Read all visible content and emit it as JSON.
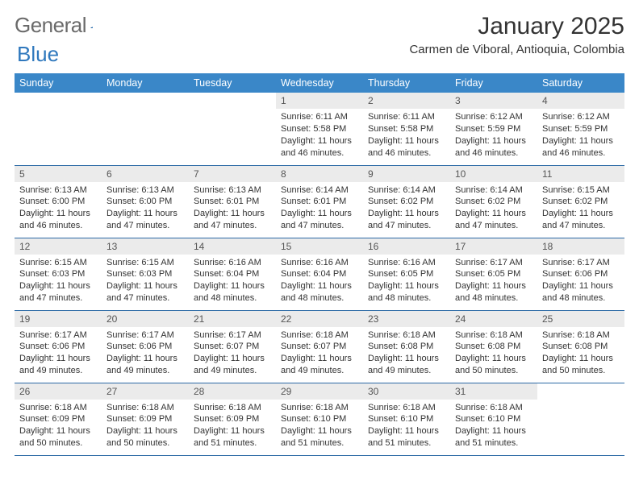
{
  "logo": {
    "word1": "General",
    "word2": "Blue"
  },
  "title": "January 2025",
  "location": "Carmen de Viboral, Antioquia, Colombia",
  "colors": {
    "header_bg": "#3a87c8",
    "header_text": "#ffffff",
    "row_border": "#2c6aa5",
    "daynum_bg": "#ebebeb",
    "logo_gray": "#6a6a6a",
    "logo_blue": "#2f78bd"
  },
  "font": {
    "daynum_size": 12,
    "body_size": 11,
    "th_size": 12.5,
    "title_size": 30,
    "location_size": 15
  },
  "weekdays": [
    "Sunday",
    "Monday",
    "Tuesday",
    "Wednesday",
    "Thursday",
    "Friday",
    "Saturday"
  ],
  "weeks": [
    [
      null,
      null,
      null,
      {
        "n": "1",
        "sr": "Sunrise: 6:11 AM",
        "ss": "Sunset: 5:58 PM",
        "dl1": "Daylight: 11 hours",
        "dl2": "and 46 minutes."
      },
      {
        "n": "2",
        "sr": "Sunrise: 6:11 AM",
        "ss": "Sunset: 5:58 PM",
        "dl1": "Daylight: 11 hours",
        "dl2": "and 46 minutes."
      },
      {
        "n": "3",
        "sr": "Sunrise: 6:12 AM",
        "ss": "Sunset: 5:59 PM",
        "dl1": "Daylight: 11 hours",
        "dl2": "and 46 minutes."
      },
      {
        "n": "4",
        "sr": "Sunrise: 6:12 AM",
        "ss": "Sunset: 5:59 PM",
        "dl1": "Daylight: 11 hours",
        "dl2": "and 46 minutes."
      }
    ],
    [
      {
        "n": "5",
        "sr": "Sunrise: 6:13 AM",
        "ss": "Sunset: 6:00 PM",
        "dl1": "Daylight: 11 hours",
        "dl2": "and 46 minutes."
      },
      {
        "n": "6",
        "sr": "Sunrise: 6:13 AM",
        "ss": "Sunset: 6:00 PM",
        "dl1": "Daylight: 11 hours",
        "dl2": "and 47 minutes."
      },
      {
        "n": "7",
        "sr": "Sunrise: 6:13 AM",
        "ss": "Sunset: 6:01 PM",
        "dl1": "Daylight: 11 hours",
        "dl2": "and 47 minutes."
      },
      {
        "n": "8",
        "sr": "Sunrise: 6:14 AM",
        "ss": "Sunset: 6:01 PM",
        "dl1": "Daylight: 11 hours",
        "dl2": "and 47 minutes."
      },
      {
        "n": "9",
        "sr": "Sunrise: 6:14 AM",
        "ss": "Sunset: 6:02 PM",
        "dl1": "Daylight: 11 hours",
        "dl2": "and 47 minutes."
      },
      {
        "n": "10",
        "sr": "Sunrise: 6:14 AM",
        "ss": "Sunset: 6:02 PM",
        "dl1": "Daylight: 11 hours",
        "dl2": "and 47 minutes."
      },
      {
        "n": "11",
        "sr": "Sunrise: 6:15 AM",
        "ss": "Sunset: 6:02 PM",
        "dl1": "Daylight: 11 hours",
        "dl2": "and 47 minutes."
      }
    ],
    [
      {
        "n": "12",
        "sr": "Sunrise: 6:15 AM",
        "ss": "Sunset: 6:03 PM",
        "dl1": "Daylight: 11 hours",
        "dl2": "and 47 minutes."
      },
      {
        "n": "13",
        "sr": "Sunrise: 6:15 AM",
        "ss": "Sunset: 6:03 PM",
        "dl1": "Daylight: 11 hours",
        "dl2": "and 47 minutes."
      },
      {
        "n": "14",
        "sr": "Sunrise: 6:16 AM",
        "ss": "Sunset: 6:04 PM",
        "dl1": "Daylight: 11 hours",
        "dl2": "and 48 minutes."
      },
      {
        "n": "15",
        "sr": "Sunrise: 6:16 AM",
        "ss": "Sunset: 6:04 PM",
        "dl1": "Daylight: 11 hours",
        "dl2": "and 48 minutes."
      },
      {
        "n": "16",
        "sr": "Sunrise: 6:16 AM",
        "ss": "Sunset: 6:05 PM",
        "dl1": "Daylight: 11 hours",
        "dl2": "and 48 minutes."
      },
      {
        "n": "17",
        "sr": "Sunrise: 6:17 AM",
        "ss": "Sunset: 6:05 PM",
        "dl1": "Daylight: 11 hours",
        "dl2": "and 48 minutes."
      },
      {
        "n": "18",
        "sr": "Sunrise: 6:17 AM",
        "ss": "Sunset: 6:06 PM",
        "dl1": "Daylight: 11 hours",
        "dl2": "and 48 minutes."
      }
    ],
    [
      {
        "n": "19",
        "sr": "Sunrise: 6:17 AM",
        "ss": "Sunset: 6:06 PM",
        "dl1": "Daylight: 11 hours",
        "dl2": "and 49 minutes."
      },
      {
        "n": "20",
        "sr": "Sunrise: 6:17 AM",
        "ss": "Sunset: 6:06 PM",
        "dl1": "Daylight: 11 hours",
        "dl2": "and 49 minutes."
      },
      {
        "n": "21",
        "sr": "Sunrise: 6:17 AM",
        "ss": "Sunset: 6:07 PM",
        "dl1": "Daylight: 11 hours",
        "dl2": "and 49 minutes."
      },
      {
        "n": "22",
        "sr": "Sunrise: 6:18 AM",
        "ss": "Sunset: 6:07 PM",
        "dl1": "Daylight: 11 hours",
        "dl2": "and 49 minutes."
      },
      {
        "n": "23",
        "sr": "Sunrise: 6:18 AM",
        "ss": "Sunset: 6:08 PM",
        "dl1": "Daylight: 11 hours",
        "dl2": "and 49 minutes."
      },
      {
        "n": "24",
        "sr": "Sunrise: 6:18 AM",
        "ss": "Sunset: 6:08 PM",
        "dl1": "Daylight: 11 hours",
        "dl2": "and 50 minutes."
      },
      {
        "n": "25",
        "sr": "Sunrise: 6:18 AM",
        "ss": "Sunset: 6:08 PM",
        "dl1": "Daylight: 11 hours",
        "dl2": "and 50 minutes."
      }
    ],
    [
      {
        "n": "26",
        "sr": "Sunrise: 6:18 AM",
        "ss": "Sunset: 6:09 PM",
        "dl1": "Daylight: 11 hours",
        "dl2": "and 50 minutes."
      },
      {
        "n": "27",
        "sr": "Sunrise: 6:18 AM",
        "ss": "Sunset: 6:09 PM",
        "dl1": "Daylight: 11 hours",
        "dl2": "and 50 minutes."
      },
      {
        "n": "28",
        "sr": "Sunrise: 6:18 AM",
        "ss": "Sunset: 6:09 PM",
        "dl1": "Daylight: 11 hours",
        "dl2": "and 51 minutes."
      },
      {
        "n": "29",
        "sr": "Sunrise: 6:18 AM",
        "ss": "Sunset: 6:10 PM",
        "dl1": "Daylight: 11 hours",
        "dl2": "and 51 minutes."
      },
      {
        "n": "30",
        "sr": "Sunrise: 6:18 AM",
        "ss": "Sunset: 6:10 PM",
        "dl1": "Daylight: 11 hours",
        "dl2": "and 51 minutes."
      },
      {
        "n": "31",
        "sr": "Sunrise: 6:18 AM",
        "ss": "Sunset: 6:10 PM",
        "dl1": "Daylight: 11 hours",
        "dl2": "and 51 minutes."
      },
      null
    ]
  ]
}
